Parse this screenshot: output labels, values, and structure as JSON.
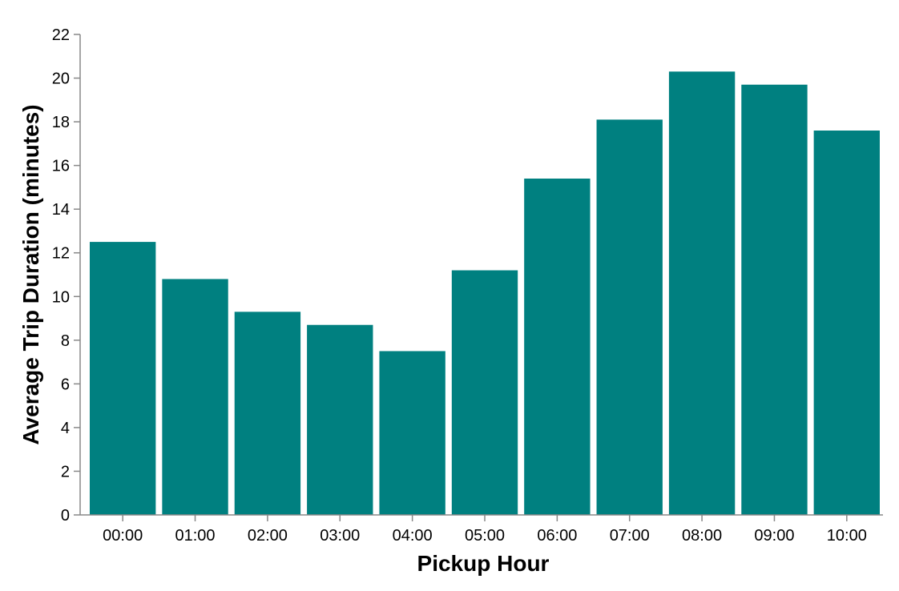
{
  "chart_data": {
    "type": "bar",
    "categories": [
      "00:00",
      "01:00",
      "02:00",
      "03:00",
      "04:00",
      "05:00",
      "06:00",
      "07:00",
      "08:00",
      "09:00",
      "10:00"
    ],
    "values": [
      12.5,
      10.8,
      9.3,
      8.7,
      7.5,
      11.2,
      15.4,
      18.1,
      20.3,
      19.7,
      17.6
    ],
    "title": "",
    "xlabel": "Pickup Hour",
    "ylabel": "Average Trip Duration (minutes)",
    "ylim": [
      0,
      22
    ],
    "yticks": [
      0,
      2,
      4,
      6,
      8,
      10,
      12,
      14,
      16,
      18,
      20,
      22
    ],
    "grid": false,
    "bar_color": "#008080"
  }
}
